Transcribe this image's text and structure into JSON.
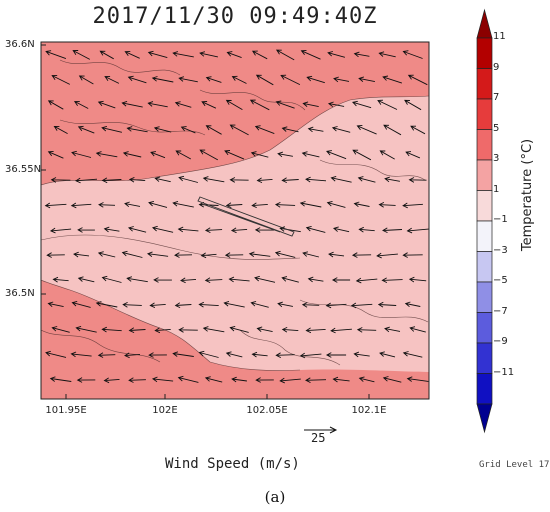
{
  "title": "2017/11/30  09:49:40Z",
  "y_axis_ticks": [
    "36.6N",
    "36.55N",
    "36.5N"
  ],
  "x_axis_ticks": [
    "101.95E",
    "102E",
    "102.05E",
    "102.1E"
  ],
  "wind_label": "Wind Speed (m/s)",
  "reference_vector": "25",
  "grid_level": "Grid Level 17",
  "panel_label": "(a)",
  "colorbar": {
    "title": "Temperature (°C)",
    "tick_labels": [
      "11",
      "9",
      "7",
      "5",
      "3",
      "1",
      "−1",
      "−3",
      "−5",
      "−7",
      "−9",
      "−11"
    ],
    "bin_colors_top_to_bottom": [
      "#8b0000",
      "#b30000",
      "#d41a1a",
      "#e63c3c",
      "#ef6a6a",
      "#f4a3a3",
      "#f8dada",
      "#f3f3fa",
      "#c7c7f2",
      "#8f8fe6",
      "#5c5cdd",
      "#3232d2",
      "#1010c2",
      "#000090"
    ]
  },
  "map": {
    "lat_range": [
      36.455,
      36.605
    ],
    "lon_range": [
      101.925,
      102.125
    ],
    "wind_direction": "mostly from the east (arrows point west / north-west)",
    "temperature_fields": [
      "3 to 5 °C warm zones (outer)",
      "1 to 3 °C band (center)"
    ]
  }
}
